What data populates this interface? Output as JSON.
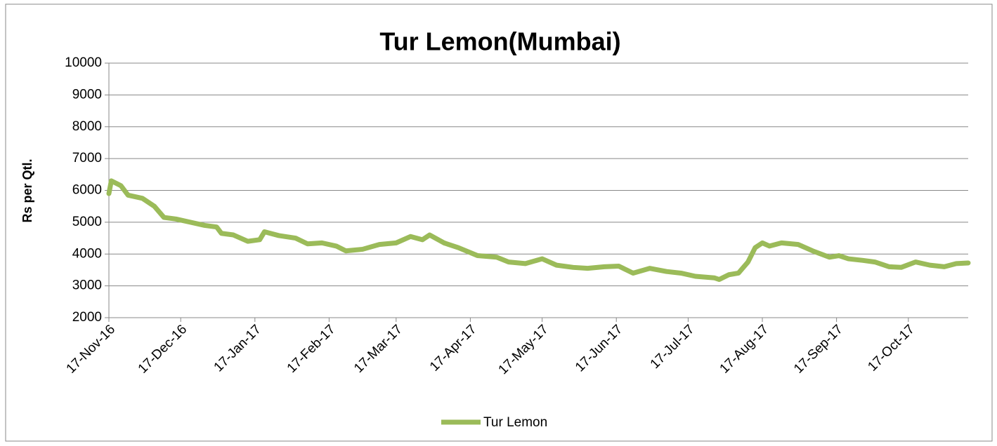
{
  "chart_data": {
    "type": "line",
    "title": "Tur Lemon(Mumbai)",
    "y_label": "Rs per Qtl.",
    "x": [
      "2016-11-17",
      "2016-11-18",
      "2016-11-22",
      "2016-11-25",
      "2016-12-01",
      "2016-12-06",
      "2016-12-10",
      "2016-12-15",
      "2016-12-21",
      "2016-12-27",
      "2017-01-01",
      "2017-01-03",
      "2017-01-08",
      "2017-01-14",
      "2017-01-19",
      "2017-01-21",
      "2017-01-27",
      "2017-02-03",
      "2017-02-08",
      "2017-02-14",
      "2017-02-20",
      "2017-02-24",
      "2017-03-03",
      "2017-03-10",
      "2017-03-17",
      "2017-03-23",
      "2017-03-28",
      "2017-03-31",
      "2017-04-06",
      "2017-04-12",
      "2017-04-20",
      "2017-04-28",
      "2017-05-03",
      "2017-05-10",
      "2017-05-17",
      "2017-05-23",
      "2017-05-30",
      "2017-06-05",
      "2017-06-12",
      "2017-06-18",
      "2017-06-24",
      "2017-07-01",
      "2017-07-08",
      "2017-07-14",
      "2017-07-20",
      "2017-07-28",
      "2017-07-30",
      "2017-08-03",
      "2017-08-07",
      "2017-08-11",
      "2017-08-14",
      "2017-08-17",
      "2017-08-20",
      "2017-08-25",
      "2017-09-01",
      "2017-09-07",
      "2017-09-14",
      "2017-09-18",
      "2017-09-22",
      "2017-09-28",
      "2017-10-03",
      "2017-10-09",
      "2017-10-14",
      "2017-10-20",
      "2017-10-26",
      "2017-11-01",
      "2017-11-06",
      "2017-11-11"
    ],
    "series": [
      {
        "name": "Tur Lemon",
        "color": "#9bbb59",
        "values": [
          5900,
          6300,
          6150,
          5850,
          5750,
          5500,
          5150,
          5100,
          5000,
          4900,
          4850,
          4650,
          4600,
          4400,
          4450,
          4700,
          4580,
          4500,
          4320,
          4350,
          4250,
          4100,
          4150,
          4300,
          4350,
          4550,
          4450,
          4600,
          4350,
          4200,
          3950,
          3900,
          3750,
          3700,
          3850,
          3650,
          3580,
          3550,
          3600,
          3620,
          3400,
          3550,
          3450,
          3400,
          3300,
          3250,
          3200,
          3350,
          3400,
          3750,
          4200,
          4350,
          4250,
          4350,
          4300,
          4100,
          3900,
          3950,
          3850,
          3800,
          3750,
          3600,
          3580,
          3750,
          3650,
          3600,
          3700,
          3720
        ]
      }
    ],
    "xlim": [
      "2016-11-17",
      "2017-11-11"
    ],
    "xticks": [
      {
        "value": "2016-11-17",
        "label": "17-Nov-16"
      },
      {
        "value": "2016-12-17",
        "label": "17-Dec-16"
      },
      {
        "value": "2017-01-17",
        "label": "17-Jan-17"
      },
      {
        "value": "2017-02-17",
        "label": "17-Feb-17"
      },
      {
        "value": "2017-03-17",
        "label": "17-Mar-17"
      },
      {
        "value": "2017-04-17",
        "label": "17-Apr-17"
      },
      {
        "value": "2017-05-17",
        "label": "17-May-17"
      },
      {
        "value": "2017-06-17",
        "label": "17-Jun-17"
      },
      {
        "value": "2017-07-17",
        "label": "17-Jul-17"
      },
      {
        "value": "2017-08-17",
        "label": "17-Aug-17"
      },
      {
        "value": "2017-09-17",
        "label": "17-Sep-17"
      },
      {
        "value": "2017-10-17",
        "label": "17-Oct-17"
      }
    ],
    "ylim": [
      2000,
      10000
    ],
    "yticks": [
      2000,
      3000,
      4000,
      5000,
      6000,
      7000,
      8000,
      9000,
      10000
    ],
    "grid": true,
    "legend": "bottom"
  }
}
